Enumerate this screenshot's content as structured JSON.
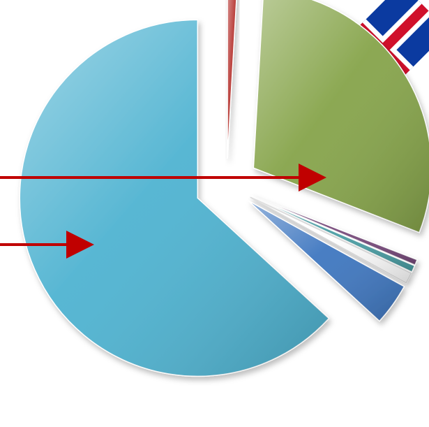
{
  "chart_data": {
    "type": "pie",
    "title": "",
    "exploded": true,
    "start_angle_deg": 0,
    "direction": "clockwise",
    "slices": [
      {
        "value": 0.9,
        "color": "#b83a36",
        "name_icon": "red-slice"
      },
      {
        "value": 30.0,
        "color": "#86a44a",
        "name_icon": "green-slice"
      },
      {
        "value": 0.5,
        "color": "#7a4c7e",
        "name_icon": "purple-slice"
      },
      {
        "value": 0.6,
        "color": "#4ba0a6",
        "name_icon": "teal-slice"
      },
      {
        "value": 1.0,
        "color": "#ffffff",
        "name_icon": "white-slice"
      },
      {
        "value": 3.8,
        "color": "#3f77c0",
        "name_icon": "blue-slice"
      },
      {
        "value": 63.2,
        "color": "#4fb3d1",
        "name_icon": "cyan-slice"
      }
    ],
    "annotations": [
      {
        "type": "arrow",
        "color": "#c00000",
        "target": "green-slice"
      },
      {
        "type": "arrow",
        "color": "#c00000",
        "target": "cyan-slice"
      }
    ],
    "legend": "none",
    "grid": false
  },
  "decor": {
    "flag_icon": "iceland-flag-icon",
    "flag_colors": {
      "field": "#0b3aa0",
      "cross_outer": "#ffffff",
      "cross_inner": "#d0102b"
    }
  }
}
